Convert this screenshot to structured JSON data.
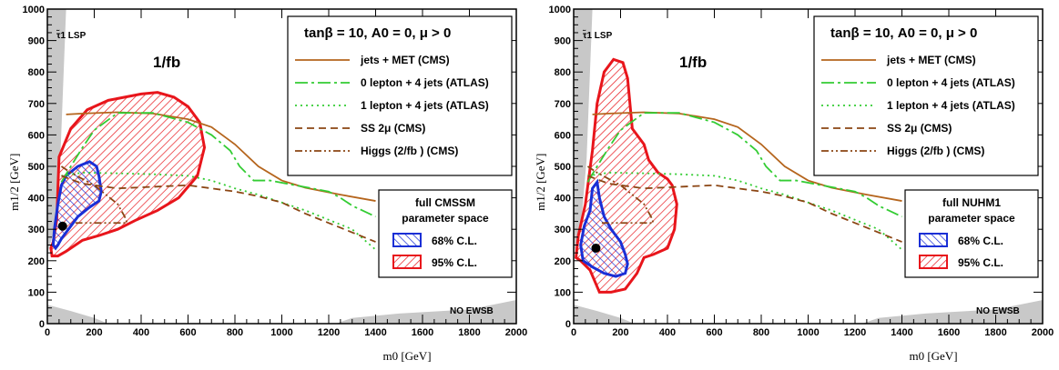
{
  "chart_data": [
    {
      "type": "scatter",
      "panel": "left",
      "xlabel": "m0 [GeV]",
      "ylabel": "m1/2 [GeV]",
      "xlim": [
        0,
        2000
      ],
      "ylim": [
        0,
        1000
      ],
      "x_ticks": [
        0,
        200,
        400,
        600,
        800,
        1000,
        1200,
        1400,
        1600,
        1800,
        2000
      ],
      "y_ticks": [
        0,
        100,
        200,
        300,
        400,
        500,
        600,
        700,
        800,
        900,
        1000
      ],
      "grid": false,
      "legend_title": "tanβ = 10, A0 = 0, μ > 0",
      "lumi_label": "1/fb",
      "lsp_label": "τ̃1 LSP",
      "ewsb_label": "NO EWSB",
      "fit_box": {
        "line1": "full CMSSM",
        "line2": "parameter space",
        "cl68": "68% C.L.",
        "cl95": "95% C.L."
      },
      "best_fit": [
        65,
        310
      ],
      "series": [
        {
          "name": "jets + MET (CMS)",
          "color": "#b5651d",
          "dash": "solid",
          "x": [
            80,
            150,
            300,
            450,
            600,
            700,
            800,
            900,
            1000,
            1100,
            1250,
            1400
          ],
          "y": [
            665,
            668,
            672,
            668,
            650,
            625,
            570,
            500,
            455,
            432,
            410,
            390
          ]
        },
        {
          "name": "0 lepton + 4 jets (ATLAS)",
          "color": "#33cc33",
          "dash": "dashdot",
          "x": [
            60,
            100,
            150,
            200,
            300,
            450,
            600,
            700,
            780,
            820,
            880,
            950,
            1200,
            1250,
            1300,
            1400
          ],
          "y": [
            450,
            500,
            560,
            615,
            670,
            670,
            640,
            600,
            550,
            500,
            455,
            455,
            420,
            400,
            375,
            340
          ]
        },
        {
          "name": "1 lepton + 4 jets (ATLAS)",
          "color": "#33cc33",
          "dash": "dot",
          "x": [
            60,
            150,
            300,
            450,
            600,
            700,
            800,
            900,
            1000,
            1100,
            1200,
            1300,
            1400
          ],
          "y": [
            470,
            480,
            478,
            475,
            470,
            455,
            430,
            410,
            385,
            360,
            330,
            300,
            235
          ]
        },
        {
          "name": "SS 2μ  (CMS)",
          "color": "#8b4513",
          "dash": "dash",
          "x": [
            60,
            150,
            300,
            450,
            600,
            700,
            800,
            900,
            1000,
            1100,
            1200,
            1300,
            1400
          ],
          "y": [
            470,
            445,
            430,
            435,
            440,
            430,
            420,
            405,
            385,
            350,
            320,
            290,
            260
          ]
        },
        {
          "name": "Higgs (2/fb ) (CMS)",
          "color": "#8b4513",
          "dash": "dashdotdot",
          "x": [
            60,
            100,
            200,
            300,
            330,
            340,
            300,
            200,
            120
          ],
          "y": [
            500,
            480,
            440,
            380,
            340,
            320,
            320,
            320,
            320
          ]
        }
      ],
      "contours": [
        {
          "name": "95% C.L.",
          "color": "#e8151b",
          "x": [
            40,
            50,
            100,
            170,
            260,
            330,
            400,
            470,
            540,
            600,
            650,
            670,
            640,
            560,
            470,
            380,
            300,
            220,
            150,
            110,
            80,
            45,
            20,
            15,
            25,
            40
          ],
          "y": [
            330,
            530,
            620,
            680,
            710,
            720,
            730,
            735,
            720,
            690,
            640,
            560,
            470,
            400,
            360,
            330,
            300,
            280,
            265,
            245,
            230,
            215,
            215,
            240,
            260,
            330
          ]
        },
        {
          "name": "68% C.L.",
          "color": "#1a2fd6",
          "x": [
            60,
            80,
            130,
            180,
            210,
            220,
            230,
            220,
            180,
            130,
            90,
            60,
            45,
            35,
            25,
            30,
            45,
            60
          ],
          "y": [
            440,
            470,
            500,
            515,
            500,
            470,
            420,
            390,
            370,
            340,
            300,
            270,
            250,
            240,
            250,
            300,
            380,
            440
          ]
        }
      ]
    },
    {
      "type": "scatter",
      "panel": "right",
      "xlabel": "m0 [GeV]",
      "ylabel": "m1/2 [GeV]",
      "xlim": [
        0,
        2000
      ],
      "ylim": [
        0,
        1000
      ],
      "x_ticks": [
        0,
        200,
        400,
        600,
        800,
        1000,
        1200,
        1400,
        1600,
        1800,
        2000
      ],
      "y_ticks": [
        0,
        100,
        200,
        300,
        400,
        500,
        600,
        700,
        800,
        900,
        1000
      ],
      "grid": false,
      "legend_title": "tanβ = 10, A0 = 0, μ > 0",
      "lumi_label": "1/fb",
      "lsp_label": "τ̃1 LSP",
      "ewsb_label": "NO EWSB",
      "fit_box": {
        "line1": "full NUHM1",
        "line2": "parameter space",
        "cl68": "68% C.L.",
        "cl95": "95% C.L."
      },
      "best_fit": [
        95,
        240
      ],
      "series": [
        {
          "name": "jets + MET (CMS)",
          "color": "#b5651d",
          "dash": "solid",
          "x": [
            80,
            150,
            300,
            450,
            600,
            700,
            800,
            900,
            1000,
            1100,
            1250,
            1400
          ],
          "y": [
            665,
            668,
            672,
            668,
            650,
            625,
            570,
            500,
            455,
            432,
            410,
            390
          ]
        },
        {
          "name": "0 lepton + 4 jets (ATLAS)",
          "color": "#33cc33",
          "dash": "dashdot",
          "x": [
            60,
            100,
            150,
            200,
            300,
            450,
            600,
            700,
            780,
            820,
            880,
            950,
            1200,
            1250,
            1300,
            1400
          ],
          "y": [
            450,
            500,
            560,
            615,
            670,
            670,
            640,
            600,
            550,
            500,
            455,
            455,
            420,
            400,
            375,
            340
          ]
        },
        {
          "name": "1 lepton + 4 jets (ATLAS)",
          "color": "#33cc33",
          "dash": "dot",
          "x": [
            60,
            150,
            300,
            450,
            600,
            700,
            800,
            900,
            1000,
            1100,
            1200,
            1300,
            1400
          ],
          "y": [
            470,
            480,
            478,
            475,
            470,
            455,
            430,
            410,
            385,
            360,
            330,
            300,
            235
          ]
        },
        {
          "name": "SS 2μ  (CMS)",
          "color": "#8b4513",
          "dash": "dash",
          "x": [
            60,
            150,
            300,
            450,
            600,
            700,
            800,
            900,
            1000,
            1100,
            1200,
            1300,
            1400
          ],
          "y": [
            470,
            445,
            430,
            435,
            440,
            430,
            420,
            405,
            385,
            350,
            320,
            290,
            260
          ]
        },
        {
          "name": "Higgs (2/fb ) (CMS)",
          "color": "#8b4513",
          "dash": "dashdotdot",
          "x": [
            60,
            100,
            200,
            300,
            330,
            340,
            300,
            200,
            120
          ],
          "y": [
            500,
            480,
            440,
            380,
            340,
            320,
            320,
            320,
            320
          ]
        }
      ],
      "contours": [
        {
          "name": "95% C.L.",
          "color": "#e8151b",
          "x": [
            100,
            130,
            170,
            210,
            230,
            240,
            250,
            300,
            320,
            360,
            400,
            420,
            440,
            430,
            400,
            340,
            300,
            270,
            220,
            160,
            110,
            70,
            30,
            10,
            20,
            50,
            80,
            100
          ],
          "y": [
            700,
            800,
            840,
            830,
            780,
            700,
            620,
            570,
            520,
            480,
            460,
            440,
            380,
            300,
            240,
            220,
            210,
            160,
            110,
            100,
            100,
            170,
            200,
            210,
            280,
            380,
            550,
            700
          ]
        },
        {
          "name": "68% C.L.",
          "color": "#1a2fd6",
          "x": [
            80,
            100,
            110,
            120,
            130,
            160,
            200,
            220,
            230,
            220,
            180,
            130,
            80,
            40,
            30,
            45,
            70,
            80
          ],
          "y": [
            430,
            450,
            400,
            370,
            340,
            300,
            260,
            220,
            190,
            160,
            150,
            160,
            180,
            200,
            250,
            310,
            360,
            430
          ]
        }
      ]
    }
  ]
}
